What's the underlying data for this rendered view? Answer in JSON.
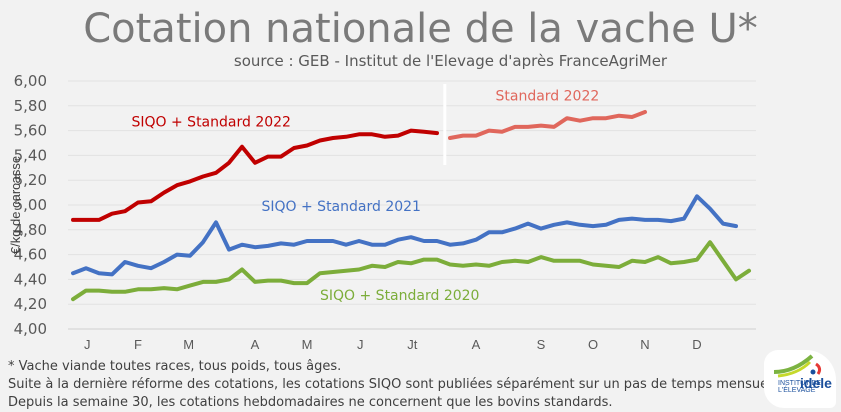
{
  "header": {
    "title": "Cotation nationale de la vache U*",
    "subtitle": "source : GEB - Institut de l'Elevage d'après FranceAgriMer"
  },
  "footnotes": [
    "* Vache viande toutes races, tous poids, tous âges.",
    "Suite à la dernière réforme des cotations, les cotations SIQO sont publiées séparément sur un pas de temps mensuel.",
    "Depuis la semaine 30, les cotations hebdomadaires ne concernent que les bovins standards."
  ],
  "logo": {
    "icon": "idele-logo",
    "small_text": "INSTITUT DE L'ÉLEVAGE",
    "brand": "idele"
  },
  "chart_data": {
    "type": "line",
    "title": "Cotation nationale de la vache U*",
    "subtitle": "source : GEB - Institut de l'Elevage d'après FranceAgriMer",
    "xlabel": "",
    "ylabel": "€/kg de carcasse",
    "ylim": [
      4.0,
      6.0
    ],
    "yticks": [
      "4,00",
      "4,20",
      "4,40",
      "4,60",
      "4,80",
      "5,00",
      "5,20",
      "5,40",
      "5,60",
      "5,80",
      "6,00"
    ],
    "ytick_values": [
      4.0,
      4.2,
      4.4,
      4.6,
      4.8,
      5.0,
      5.2,
      5.4,
      5.6,
      5.8,
      6.0
    ],
    "x_unit": "week",
    "xlim": [
      1,
      53
    ],
    "month_labels": [
      {
        "label": "J",
        "week": 2.1
      },
      {
        "label": "F",
        "week": 6.0
      },
      {
        "label": "M",
        "week": 9.9
      },
      {
        "label": "A",
        "week": 15.0
      },
      {
        "label": "M",
        "week": 19.0
      },
      {
        "label": "J",
        "week": 23.1
      },
      {
        "label": "Jt",
        "week": 27.1
      },
      {
        "label": "A",
        "week": 32.0
      },
      {
        "label": "S",
        "week": 37.0
      },
      {
        "label": "O",
        "week": 41.0
      },
      {
        "label": "N",
        "week": 45.0
      },
      {
        "label": "D",
        "week": 49.0
      }
    ],
    "grid": true,
    "separator_week": 29.6,
    "series": [
      {
        "name": "SIQO + Standard 2020",
        "color": "#7cad3a",
        "start_week": 1,
        "label_week": 20,
        "label_value": 4.275,
        "values": [
          4.24,
          4.31,
          4.31,
          4.3,
          4.3,
          4.32,
          4.32,
          4.33,
          4.32,
          4.35,
          4.38,
          4.38,
          4.4,
          4.48,
          4.38,
          4.39,
          4.39,
          4.37,
          4.37,
          4.45,
          4.46,
          4.47,
          4.48,
          4.51,
          4.5,
          4.54,
          4.53,
          4.56,
          4.56,
          4.52,
          4.51,
          4.52,
          4.51,
          4.54,
          4.55,
          4.54,
          4.58,
          4.55,
          4.55,
          4.55,
          4.52,
          4.51,
          4.5,
          4.55,
          4.54,
          4.58,
          4.53,
          4.54,
          4.56,
          4.7,
          4.55,
          4.4,
          4.47
        ]
      },
      {
        "name": "SIQO + Standard 2021",
        "color": "#4472c4",
        "start_week": 1,
        "label_week": 15.5,
        "label_value": 4.99,
        "values": [
          4.45,
          4.49,
          4.45,
          4.44,
          4.54,
          4.51,
          4.49,
          4.54,
          4.6,
          4.59,
          4.7,
          4.86,
          4.64,
          4.68,
          4.66,
          4.67,
          4.69,
          4.68,
          4.71,
          4.71,
          4.71,
          4.68,
          4.71,
          4.68,
          4.68,
          4.72,
          4.74,
          4.71,
          4.71,
          4.68,
          4.69,
          4.72,
          4.78,
          4.78,
          4.81,
          4.85,
          4.81,
          4.84,
          4.86,
          4.84,
          4.83,
          4.84,
          4.88,
          4.89,
          4.88,
          4.88,
          4.87,
          4.89,
          5.07,
          4.97,
          4.85,
          4.83
        ]
      },
      {
        "name": "SIQO + Standard 2022",
        "color": "#c00000",
        "start_week": 1,
        "label_week": 5.5,
        "label_value": 5.675,
        "values": [
          4.88,
          4.88,
          4.88,
          4.93,
          4.95,
          5.02,
          5.03,
          5.1,
          5.16,
          5.19,
          5.23,
          5.26,
          5.34,
          5.47,
          5.34,
          5.39,
          5.39,
          5.46,
          5.48,
          5.52,
          5.54,
          5.55,
          5.57,
          5.57,
          5.55,
          5.56,
          5.6,
          5.59,
          5.58
        ]
      },
      {
        "name": "Standard 2022",
        "color": "#e0675c",
        "start_week": 30,
        "label_week": 33.5,
        "label_value": 5.885,
        "values": [
          5.54,
          5.56,
          5.56,
          5.6,
          5.59,
          5.63,
          5.63,
          5.64,
          5.63,
          5.7,
          5.68,
          5.7,
          5.7,
          5.72,
          5.71,
          5.75
        ]
      }
    ]
  }
}
